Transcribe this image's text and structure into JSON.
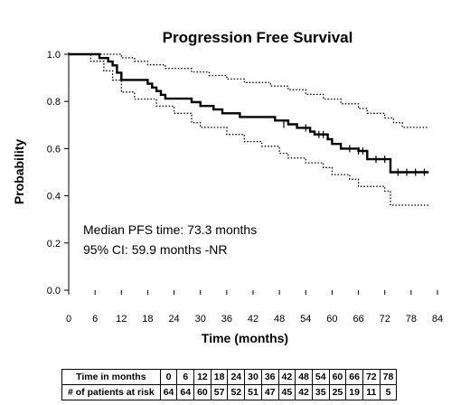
{
  "chart_data": {
    "type": "line",
    "title": "Progression Free Survival",
    "xlabel": "Time (months)",
    "ylabel": "Probability",
    "xlim": [
      0,
      84
    ],
    "ylim": [
      0.0,
      1.0
    ],
    "xticks": [
      0,
      6,
      12,
      18,
      24,
      30,
      36,
      42,
      48,
      54,
      60,
      66,
      72,
      78,
      84
    ],
    "yticks": [
      "0.0",
      "0.2",
      "0.4",
      "0.6",
      "0.8",
      "1.0"
    ],
    "grid": false,
    "annotations": [
      "Median PFS time: 73.3 months",
      "95% CI: 59.9 months -NR"
    ],
    "series": [
      {
        "style": "solid-step",
        "points": [
          [
            0,
            1.0
          ],
          [
            6,
            1.0
          ],
          [
            7,
            0.984
          ],
          [
            9,
            0.969
          ],
          [
            10,
            0.953
          ],
          [
            11,
            0.922
          ],
          [
            12,
            0.891
          ],
          [
            17,
            0.891
          ],
          [
            18,
            0.875
          ],
          [
            19,
            0.859
          ],
          [
            20,
            0.844
          ],
          [
            21,
            0.828
          ],
          [
            22,
            0.812
          ],
          [
            27,
            0.812
          ],
          [
            28,
            0.797
          ],
          [
            30,
            0.781
          ],
          [
            33,
            0.766
          ],
          [
            34,
            0.766
          ],
          [
            35,
            0.75
          ],
          [
            37,
            0.75
          ],
          [
            39,
            0.734
          ],
          [
            46,
            0.734
          ],
          [
            47,
            0.719
          ],
          [
            50,
            0.703
          ],
          [
            52,
            0.688
          ],
          [
            55,
            0.672
          ],
          [
            56,
            0.66
          ],
          [
            59,
            0.64
          ],
          [
            60,
            0.62
          ],
          [
            62,
            0.6
          ],
          [
            66,
            0.59
          ],
          [
            68,
            0.555
          ],
          [
            73.3,
            0.555
          ],
          [
            73.3,
            0.5
          ],
          [
            82,
            0.5
          ]
        ],
        "censor_marks": [
          [
            49,
            0.703
          ],
          [
            54,
            0.688
          ],
          [
            57,
            0.66
          ],
          [
            58,
            0.66
          ],
          [
            64,
            0.6
          ],
          [
            66,
            0.59
          ],
          [
            67,
            0.59
          ],
          [
            70,
            0.555
          ],
          [
            72,
            0.555
          ],
          [
            75,
            0.5
          ],
          [
            77,
            0.5
          ],
          [
            79,
            0.5
          ],
          [
            81,
            0.5
          ]
        ]
      },
      {
        "style": "dotted-step",
        "points": [
          [
            0,
            1.0
          ],
          [
            9,
            1.0
          ],
          [
            12,
            0.985
          ],
          [
            15,
            0.97
          ],
          [
            18,
            0.955
          ],
          [
            22,
            0.94
          ],
          [
            28,
            0.925
          ],
          [
            32,
            0.91
          ],
          [
            36,
            0.895
          ],
          [
            40,
            0.88
          ],
          [
            46,
            0.865
          ],
          [
            50,
            0.85
          ],
          [
            54,
            0.83
          ],
          [
            58,
            0.81
          ],
          [
            62,
            0.79
          ],
          [
            66,
            0.77
          ],
          [
            68,
            0.75
          ],
          [
            72,
            0.73
          ],
          [
            74,
            0.71
          ],
          [
            76,
            0.69
          ],
          [
            82,
            0.69
          ]
        ]
      },
      {
        "style": "dotted-step",
        "points": [
          [
            0,
            1.0
          ],
          [
            5,
            0.97
          ],
          [
            8,
            0.93
          ],
          [
            10,
            0.89
          ],
          [
            12,
            0.84
          ],
          [
            15,
            0.81
          ],
          [
            20,
            0.78
          ],
          [
            24,
            0.75
          ],
          [
            28,
            0.71
          ],
          [
            30,
            0.69
          ],
          [
            36,
            0.66
          ],
          [
            40,
            0.63
          ],
          [
            44,
            0.61
          ],
          [
            48,
            0.58
          ],
          [
            50,
            0.56
          ],
          [
            54,
            0.54
          ],
          [
            58,
            0.52
          ],
          [
            60,
            0.49
          ],
          [
            64,
            0.47
          ],
          [
            66,
            0.44
          ],
          [
            72,
            0.42
          ],
          [
            73.3,
            0.36
          ],
          [
            82,
            0.36
          ]
        ]
      }
    ]
  },
  "risk_table": {
    "row1_label": "Time in months",
    "row2_label": "# of patients at risk",
    "times": [
      "0",
      "6",
      "12",
      "18",
      "24",
      "30",
      "36",
      "42",
      "48",
      "54",
      "60",
      "66",
      "72",
      "78"
    ],
    "at_risk": [
      "64",
      "64",
      "60",
      "57",
      "52",
      "51",
      "47",
      "45",
      "42",
      "35",
      "25",
      "19",
      "11",
      "5"
    ]
  }
}
